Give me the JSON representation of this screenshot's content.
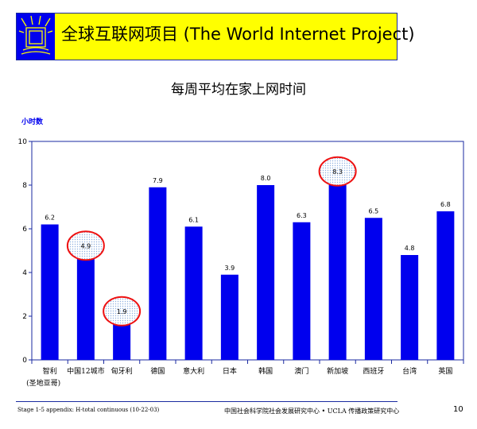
{
  "banner": {
    "title": "全球互联网项目 (The World Internet Project)",
    "logo": "tv-monitor-logo"
  },
  "chart_data": {
    "type": "bar",
    "title": "每周平均在家上网时间",
    "ylabel": "小时数",
    "xlabel": "",
    "categories": [
      "智利\n(圣地亚哥)",
      "中国12城市",
      "匈牙利",
      "德国",
      "意大利",
      "日本",
      "韩国",
      "澳门",
      "新加坡",
      "西班牙",
      "台湾",
      "英国"
    ],
    "values": [
      6.2,
      4.9,
      1.9,
      7.9,
      6.1,
      3.9,
      8.0,
      6.3,
      8.3,
      6.5,
      4.8,
      6.8
    ],
    "value_labels": [
      "6.2",
      "4.9",
      "1.9",
      "7.9",
      "6.1",
      "3.9",
      "8.0",
      "6.3",
      "8.3",
      "6.5",
      "4.8",
      "6.8"
    ],
    "highlighted": [
      "中国12城市",
      "匈牙利",
      "新加坡"
    ],
    "ylim": [
      0,
      10
    ],
    "yticks": [
      "0",
      "2",
      "4",
      "6",
      "8",
      "10"
    ],
    "grid": false,
    "bar_color": "#0000ee",
    "highlight_color": "#ee1111"
  },
  "footer": {
    "left": "Stage 1-5 appendix: H-total continuous (10-22-03)",
    "center": "中国社会科学院社会发展研究中心 • UCLA 传播政策研究中心",
    "page": "10"
  }
}
